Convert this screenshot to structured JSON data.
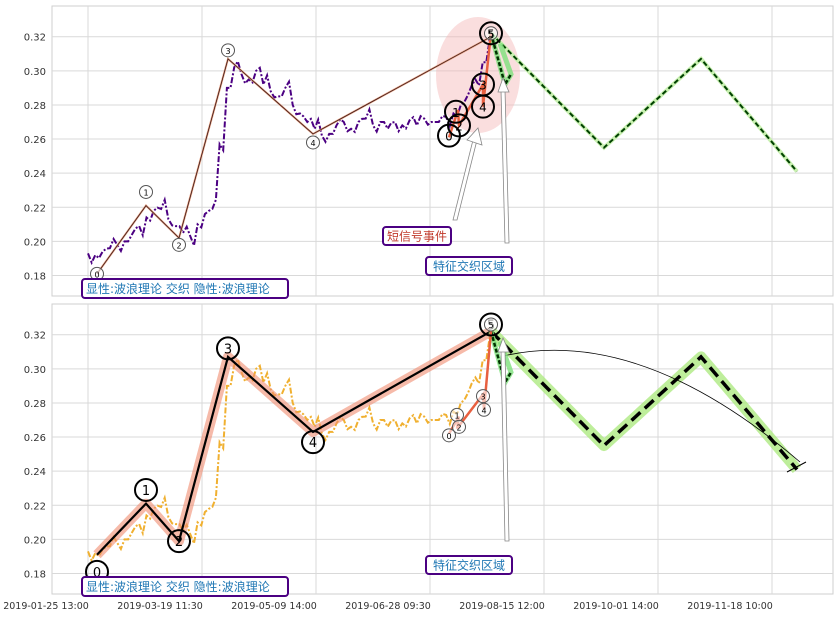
{
  "chart_data": [
    {
      "type": "line",
      "panel": "top",
      "ylim": [
        0.168,
        0.338
      ],
      "yticks": [
        "0.32",
        "0.30",
        "0.28",
        "0.26",
        "0.24",
        "0.22",
        "0.20",
        "0.18"
      ],
      "grid": true,
      "price_color": "#4b0082",
      "price_series": [
        [
          0.193,
          0.192,
          0.194,
          0.196,
          0.198,
          0.2,
          0.204,
          0.209,
          0.214,
          0.218,
          0.219,
          0.213,
          0.209,
          0.205,
          0.203,
          0.21,
          0.216,
          0.219,
          0.257,
          0.29,
          0.302,
          0.298,
          0.295,
          0.3,
          0.292,
          0.288,
          0.285,
          0.29,
          0.28,
          0.275,
          0.27,
          0.266,
          0.262,
          0.263,
          0.268,
          0.27,
          0.266,
          0.27,
          0.272,
          0.268,
          0.27,
          0.266,
          0.27,
          0.268,
          0.271,
          0.268,
          0.272,
          0.27,
          0.27,
          0.273,
          0.275,
          0.28,
          0.286,
          0.295,
          0.305,
          0.32
        ]
      ],
      "wave_points": [
        {
          "label": "0",
          "value": 0.181
        },
        {
          "label": "1",
          "value": 0.221
        },
        {
          "label": "2",
          "value": 0.202
        },
        {
          "label": "3",
          "value": 0.307
        },
        {
          "label": "4",
          "value": 0.263
        },
        {
          "label": "5",
          "value": 0.32
        }
      ],
      "sub_wave_points": [
        {
          "label": "0",
          "value": 0.261
        },
        {
          "label": "1",
          "value": 0.277
        },
        {
          "label": "2",
          "value": 0.268
        },
        {
          "label": "3",
          "value": 0.292
        },
        {
          "label": "4",
          "value": 0.279
        },
        {
          "label": "5",
          "value": 0.322
        }
      ],
      "forecast": [
        0.322,
        0.255,
        0.307,
        0.241
      ],
      "annotations": [
        {
          "text": "短信号事件",
          "color": "#c0392b"
        },
        {
          "text": "特征交织区域",
          "color": "#1f77b4"
        }
      ],
      "legend": "显性:波浪理论 交织 隐性:波浪理论"
    },
    {
      "type": "line",
      "panel": "bottom",
      "ylim": [
        0.168,
        0.338
      ],
      "yticks": [
        "0.32",
        "0.30",
        "0.28",
        "0.26",
        "0.24",
        "0.22",
        "0.20",
        "0.18"
      ],
      "xticks": [
        "2019-01-25 13:00",
        "2019-03-19 11:30",
        "2019-05-09 14:00",
        "2019-06-28 09:30",
        "2019-08-15 12:00",
        "2019-10-01 14:00",
        "2019-11-18 10:00"
      ],
      "grid": true,
      "price_color": "#f0b030",
      "wave_points": [
        {
          "label": "0",
          "value": 0.191
        },
        {
          "label": "1",
          "value": 0.221
        },
        {
          "label": "2",
          "value": 0.199
        },
        {
          "label": "3",
          "value": 0.307
        },
        {
          "label": "4",
          "value": 0.263
        },
        {
          "label": "5",
          "value": 0.322
        }
      ],
      "sub_wave_points": [
        {
          "label": "0",
          "value": 0.262
        },
        {
          "label": "1",
          "value": 0.272
        },
        {
          "label": "2",
          "value": 0.265
        },
        {
          "label": "3",
          "value": 0.285
        },
        {
          "label": "4",
          "value": 0.276
        },
        {
          "label": "5",
          "value": 0.322
        }
      ],
      "forecast": [
        0.322,
        0.255,
        0.307,
        0.241
      ],
      "annotations": [
        {
          "text": "特征交织区域",
          "color": "#1f77b4"
        }
      ],
      "legend": "显性:波浪理论 交织 隐性:波浪理论"
    }
  ]
}
